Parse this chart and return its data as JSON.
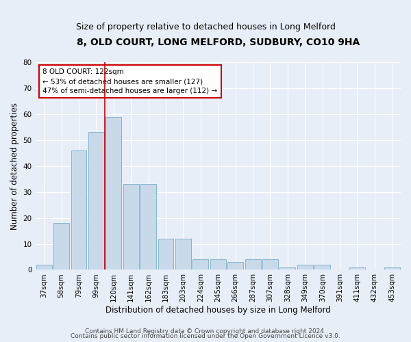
{
  "title1": "8, OLD COURT, LONG MELFORD, SUDBURY, CO10 9HA",
  "title2": "Size of property relative to detached houses in Long Melford",
  "xlabel": "Distribution of detached houses by size in Long Melford",
  "ylabel": "Number of detached properties",
  "categories": [
    "37sqm",
    "58sqm",
    "79sqm",
    "99sqm",
    "120sqm",
    "141sqm",
    "162sqm",
    "183sqm",
    "203sqm",
    "224sqm",
    "245sqm",
    "266sqm",
    "287sqm",
    "307sqm",
    "328sqm",
    "349sqm",
    "370sqm",
    "391sqm",
    "411sqm",
    "432sqm",
    "453sqm"
  ],
  "values": [
    2,
    18,
    46,
    53,
    59,
    33,
    33,
    12,
    12,
    4,
    4,
    3,
    4,
    4,
    1,
    2,
    2,
    0,
    1,
    0,
    1
  ],
  "bar_color": "#c8d9ea",
  "bar_edge_color": "#7aadcc",
  "highlight_index": 4,
  "highlight_line_color": "#cc0000",
  "ylim": [
    0,
    80
  ],
  "yticks": [
    0,
    10,
    20,
    30,
    40,
    50,
    60,
    70,
    80
  ],
  "annotation_text": "8 OLD COURT: 122sqm\n← 53% of detached houses are smaller (127)\n47% of semi-detached houses are larger (112) →",
  "annotation_box_color": "#ffffff",
  "annotation_box_edge": "#cc0000",
  "footer1": "Contains HM Land Registry data © Crown copyright and database right 2024.",
  "footer2": "Contains public sector information licensed under the Open Government Licence v3.0.",
  "background_color": "#e8eef7",
  "plot_bg_color": "#e8eef7",
  "title1_fontsize": 10,
  "title2_fontsize": 9,
  "xlabel_fontsize": 8.5,
  "ylabel_fontsize": 8.5,
  "tick_fontsize": 7.5,
  "annotation_fontsize": 7.5,
  "footer_fontsize": 6.5
}
